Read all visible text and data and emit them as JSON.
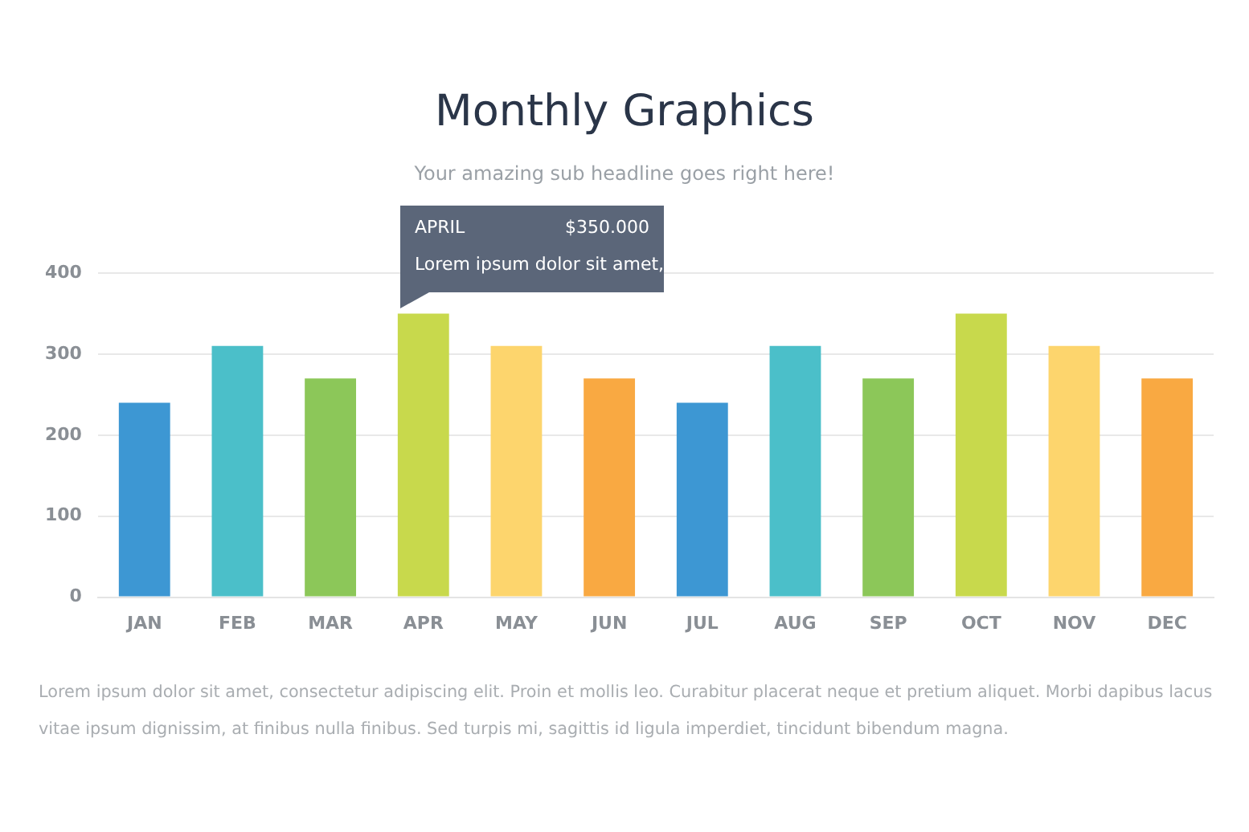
{
  "chart_data": {
    "type": "bar",
    "title": "Monthly Graphics",
    "subtitle": "Your amazing sub headline goes right here!",
    "categories": [
      "JAN",
      "FEB",
      "MAR",
      "APR",
      "MAY",
      "JUN",
      "JUL",
      "AUG",
      "SEP",
      "OCT",
      "NOV",
      "DEC"
    ],
    "values": [
      240,
      310,
      270,
      350,
      310,
      270,
      240,
      310,
      270,
      350,
      310,
      270
    ],
    "colors": [
      "#3d97d3",
      "#4bbfc9",
      "#8cc759",
      "#c8d94c",
      "#fdd56d",
      "#f9a942",
      "#3d97d3",
      "#4bbfc9",
      "#8cc759",
      "#c8d94c",
      "#fdd56d",
      "#f9a942"
    ],
    "ylim": [
      0,
      400
    ],
    "yticks": [
      0,
      100,
      200,
      300,
      400
    ],
    "grid": "y",
    "annotations": [
      "APRIL",
      "$350.000",
      "Lorem ipsum dolor sit amet,",
      "Lorem ipsum dolor sit amet, consectetur adipiscing elit. Proin et mollis leo. Curabitur placerat neque et pretium aliquet. Morbi dapibus lacus vitae ipsum dignissim, at finibus nulla finibus. Sed turpis mi, sagittis id ligula imperdiet, tincidunt bibendum magna."
    ]
  }
}
